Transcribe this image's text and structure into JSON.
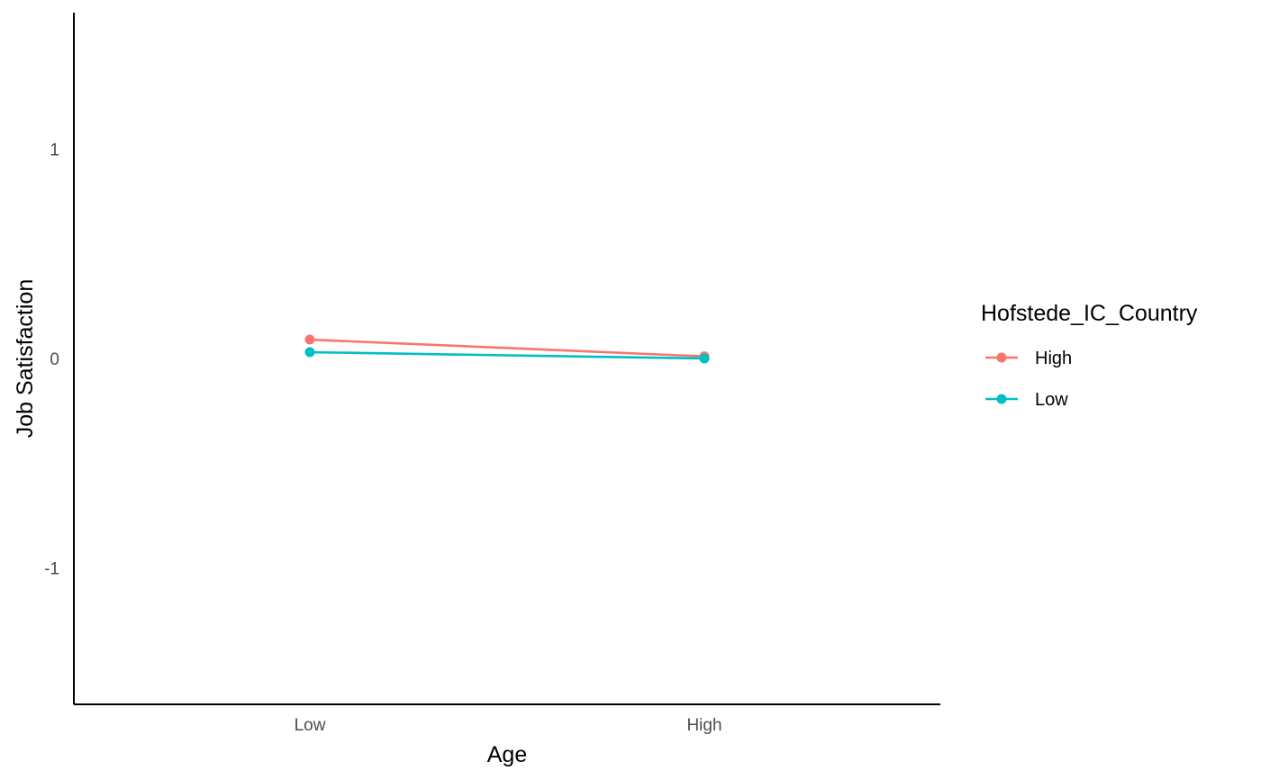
{
  "chart_data": {
    "type": "line",
    "xlabel": "Age",
    "ylabel": "Job Satisfaction",
    "categories": [
      "Low",
      "High"
    ],
    "ylim": [
      -1.65,
      1.65
    ],
    "yticks": [
      -1,
      0,
      1
    ],
    "grid": false,
    "legend": {
      "title": "Hofstede_IC_Country",
      "position": "right"
    },
    "series": [
      {
        "name": "High",
        "color": "#F8766D",
        "values": [
          0.09,
          0.01
        ]
      },
      {
        "name": "Low",
        "color": "#00BFC4",
        "values": [
          0.03,
          0.0
        ]
      }
    ]
  }
}
